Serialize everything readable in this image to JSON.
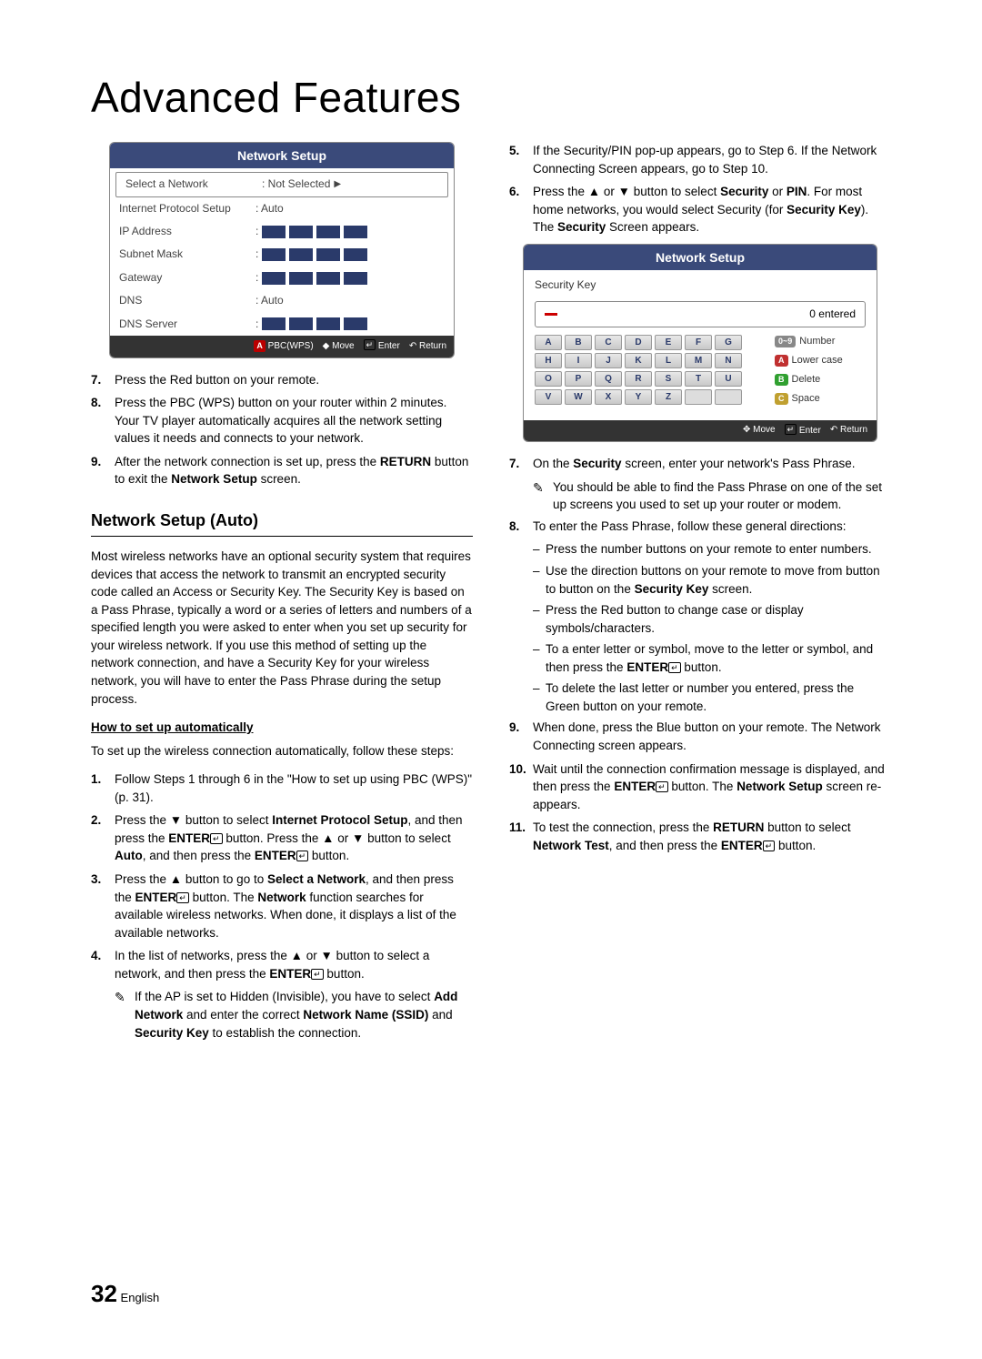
{
  "title": "Advanced Features",
  "footer": {
    "page": "32",
    "lang": "English"
  },
  "nsBox": {
    "title": "Network Setup",
    "rows": [
      {
        "label": "Select a Network",
        "value": ": Not Selected",
        "arrow": true,
        "selected": true
      },
      {
        "label": "Internet Protocol Setup",
        "value": ": Auto"
      },
      {
        "label": "IP Address",
        "ip": true
      },
      {
        "label": "Subnet Mask",
        "ip": true
      },
      {
        "label": "Gateway",
        "ip": true
      },
      {
        "label": "DNS",
        "value": ": Auto"
      },
      {
        "label": "DNS Server",
        "ip": true
      }
    ],
    "foot": {
      "pbc": "PBC(WPS)",
      "move": "Move",
      "enter": "Enter",
      "return": "Return"
    }
  },
  "leftSteps": {
    "s7": "Press the Red button on your remote.",
    "s8": "Press the PBC (WPS) button on your router within 2 minutes. Your TV player automatically acquires all the network setting values it needs and connects to your network.",
    "s9a": "After the network connection is set up, press the ",
    "s9b": "RETURN",
    "s9c": " button to exit the ",
    "s9d": "Network Setup",
    "s9e": " screen."
  },
  "sectTitle": "Network Setup (Auto)",
  "autoPara": "Most wireless networks have an optional security system that requires devices that access the network to transmit an encrypted security code called an Access or Security Key. The Security Key is based on a Pass Phrase, typically a word or a series of letters and numbers of a specified length you were asked to enter when you set up security for your wireless network. If you use this method of setting up the network connection, and have a Security Key for your wireless network, you will have to enter the Pass Phrase during the setup process.",
  "howTitle": "How to set up automatically",
  "howIntro": "To set up the wireless connection automatically, follow these steps:",
  "autoSteps": {
    "s1": "Follow Steps 1 through 6 in the \"How to set up using PBC (WPS)\" (p. 31).",
    "s2_1": "Press the ▼ button to select ",
    "s2_2": "Internet Protocol Setup",
    "s2_3": ", and then press the ",
    "s2_4": "ENTER",
    "s2_5": " button. Press the ▲ or ▼ button to select ",
    "s2_6": "Auto",
    "s2_7": ", and then press the ",
    "s2_8": "ENTER",
    "s2_9": " button.",
    "s3_1": "Press the ▲ button to go to ",
    "s3_2": "Select a Network",
    "s3_3": ", and then press the ",
    "s3_4": "ENTER",
    "s3_5": " button. The ",
    "s3_6": "Network",
    "s3_7": " function searches for available wireless networks. When done, it displays a list of the available networks.",
    "s4_1": "In the list of networks, press the ▲ or ▼ button to select a network, and then press the ",
    "s4_2": "ENTER",
    "s4_3": " button.",
    "s4n_1": "If the AP is set to Hidden (Invisible), you have to select ",
    "s4n_2": "Add Network",
    "s4n_3": " and enter the correct ",
    "s4n_4": "Network Name (SSID)",
    "s4n_5": " and ",
    "s4n_6": "Security Key",
    "s4n_7": " to establish the connection."
  },
  "rightTop": {
    "s5": "If the Security/PIN pop-up appears, go to Step 6. If the Network Connecting Screen appears, go to Step 10.",
    "s6_1": "Press the ▲ or ▼ button to select ",
    "s6_2": "Security",
    "s6_3": " or ",
    "s6_4": "PIN",
    "s6_5": ". For most home networks, you would select Security (for ",
    "s6_6": "Security Key",
    "s6_7": "). The ",
    "s6_8": "Security",
    "s6_9": " Screen appears."
  },
  "kbBox": {
    "title": "Network Setup",
    "sub": "Security Key",
    "entered": "0 entered",
    "rows": [
      [
        "A",
        "B",
        "C",
        "D",
        "E",
        "F",
        "G"
      ],
      [
        "H",
        "I",
        "J",
        "K",
        "L",
        "M",
        "N"
      ],
      [
        "O",
        "P",
        "Q",
        "R",
        "S",
        "T",
        "U"
      ],
      [
        "V",
        "W",
        "X",
        "Y",
        "Z",
        "",
        ""
      ]
    ],
    "side": [
      {
        "badge": "0~9",
        "cls": "bg-num",
        "label": "Number"
      },
      {
        "badge": "A",
        "cls": "bg-red",
        "label": "Lower case"
      },
      {
        "badge": "B",
        "cls": "bg-green",
        "label": "Delete"
      },
      {
        "badge": "C",
        "cls": "bg-yellow",
        "label": "Space"
      }
    ],
    "foot": {
      "move": "Move",
      "enter": "Enter",
      "return": "Return"
    }
  },
  "rightSteps": {
    "s7_1": "On the ",
    "s7_2": "Security",
    "s7_3": " screen, enter your network's Pass Phrase.",
    "s7n": "You should be able to find the Pass Phrase on one of the set up screens you used to set up your router or modem.",
    "s8": "To enter the Pass Phrase, follow these general directions:",
    "d1": "Press the number buttons on your remote to enter numbers.",
    "d2_1": "Use the direction buttons on your remote to move from button to button on the ",
    "d2_2": "Security Key",
    "d2_3": " screen.",
    "d3": "Press the Red button to change case or display symbols/characters.",
    "d4_1": "To a enter letter or symbol, move to the letter or symbol, and then press the ",
    "d4_2": "ENTER",
    "d4_3": " button.",
    "d5": "To delete the last letter or number you entered, press the Green button on your remote.",
    "s9": "When done, press the Blue button on your remote. The Network Connecting screen appears.",
    "s10_1": "Wait until the connection confirmation message is displayed, and then press the ",
    "s10_2": "ENTER",
    "s10_3": " button. The ",
    "s10_4": "Network Setup",
    "s10_5": " screen re-appears.",
    "s11_1": "To test the connection, press the ",
    "s11_2": "RETURN",
    "s11_3": " button to select ",
    "s11_4": "Network Test",
    "s11_5": ", and then press the ",
    "s11_6": "ENTER",
    "s11_7": " button."
  }
}
